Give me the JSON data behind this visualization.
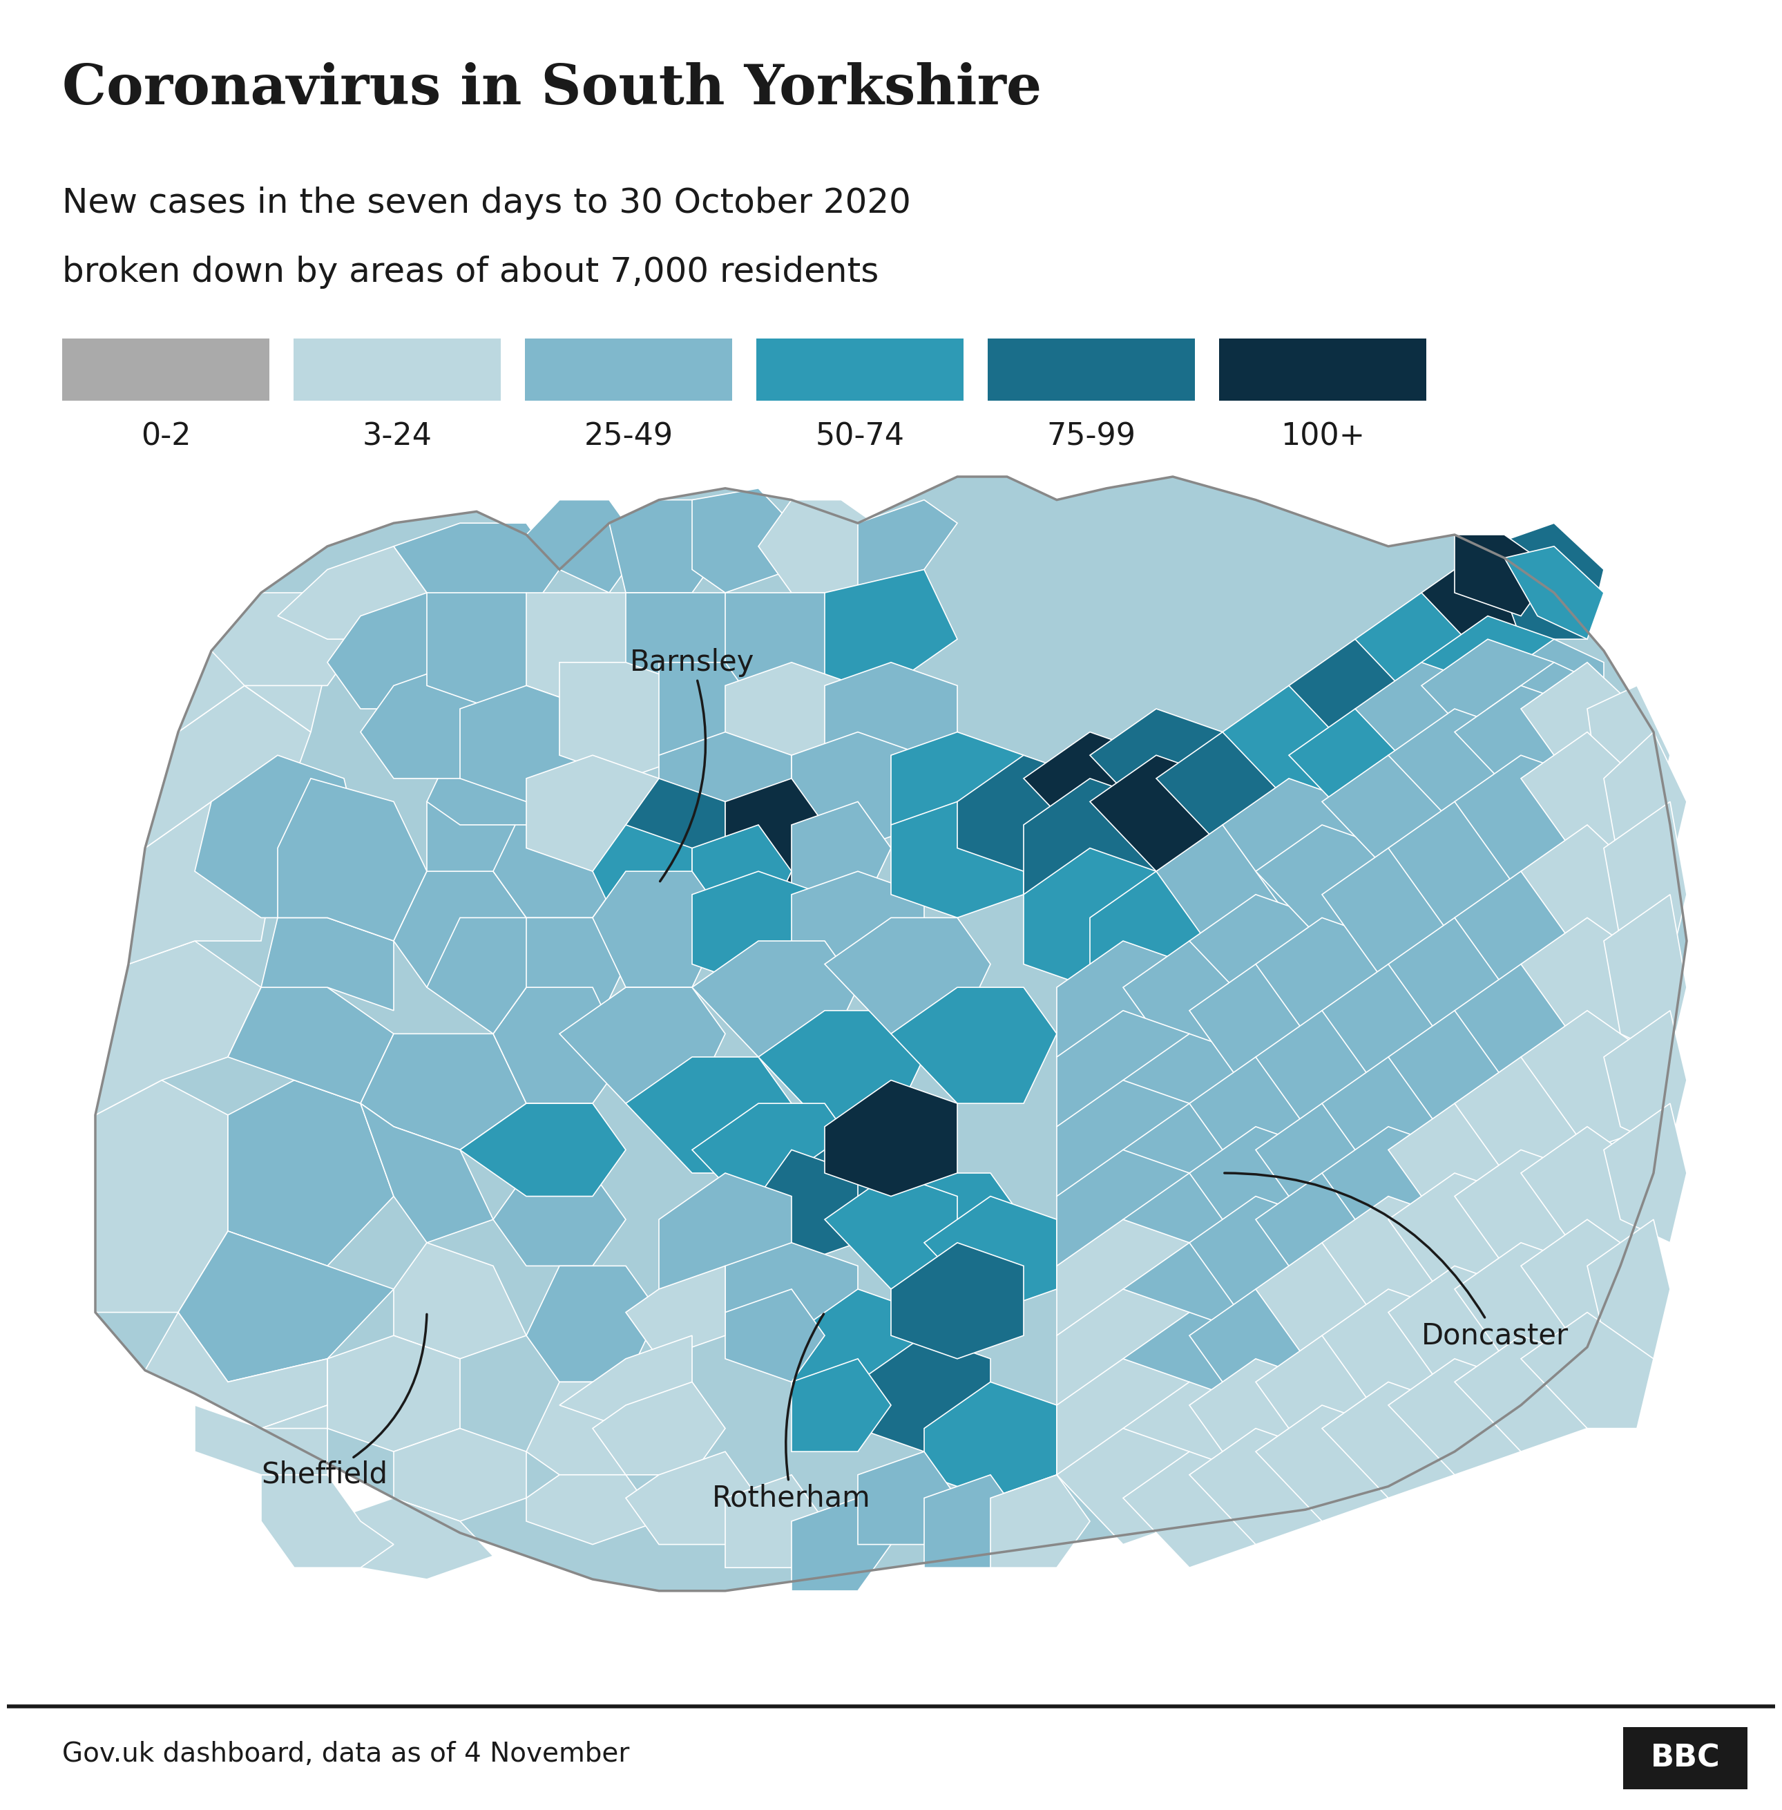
{
  "title": "Coronavirus in South Yorkshire",
  "subtitle_line1": "New cases in the seven days to 30 October 2020",
  "subtitle_line2": "broken down by areas of about 7,000 residents",
  "footer_left": "Gov.uk dashboard, data as of 4 November",
  "footer_right": "BBC",
  "legend_labels": [
    "0-2",
    "3-24",
    "25-49",
    "50-74",
    "75-99",
    "100+"
  ],
  "legend_colors": [
    "#aaaaaa",
    "#bcd8e0",
    "#80b8cc",
    "#2e9ab5",
    "#1a6e8a",
    "#0c2e42"
  ],
  "background_color": "#ffffff",
  "title_color": "#1a1a1a",
  "subtitle_color": "#1a1a1a",
  "title_fontsize": 58,
  "subtitle_fontsize": 36,
  "legend_fontsize": 32,
  "footer_fontsize": 28,
  "map_base_color": "#a8cdd8",
  "map_border_color": "#ffffff",
  "outer_border_color": "#888888"
}
